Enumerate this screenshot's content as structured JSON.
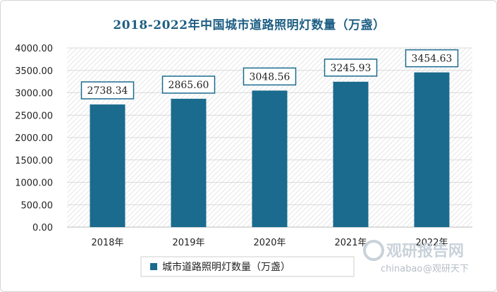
{
  "chart_data": {
    "type": "bar",
    "title": "2018-2022年中国城市道路照明灯数量（万盏）",
    "categories": [
      "2018年",
      "2019年",
      "2020年",
      "2021年",
      "2022年"
    ],
    "series": [
      {
        "name": "城市道路照明灯数量（万盏）",
        "values": [
          2738.34,
          2865.6,
          3048.56,
          3245.93,
          3454.63
        ]
      }
    ],
    "data_labels": [
      "2738.34",
      "2865.60",
      "3048.56",
      "3245.93",
      "3454.63"
    ],
    "y_ticks": [
      "0.00",
      "500.00",
      "1000.00",
      "1500.00",
      "2000.00",
      "2500.00",
      "3000.00",
      "3500.00",
      "4000.00"
    ],
    "ylim": [
      0,
      4000
    ],
    "grid": true,
    "legend_position": "bottom",
    "bar_color": "#1a6b8e",
    "label_border_color": "#1a6b8e"
  },
  "watermark": {
    "brand": "观研报告网",
    "domain": "chinabao",
    "handle": "@观研天下"
  }
}
